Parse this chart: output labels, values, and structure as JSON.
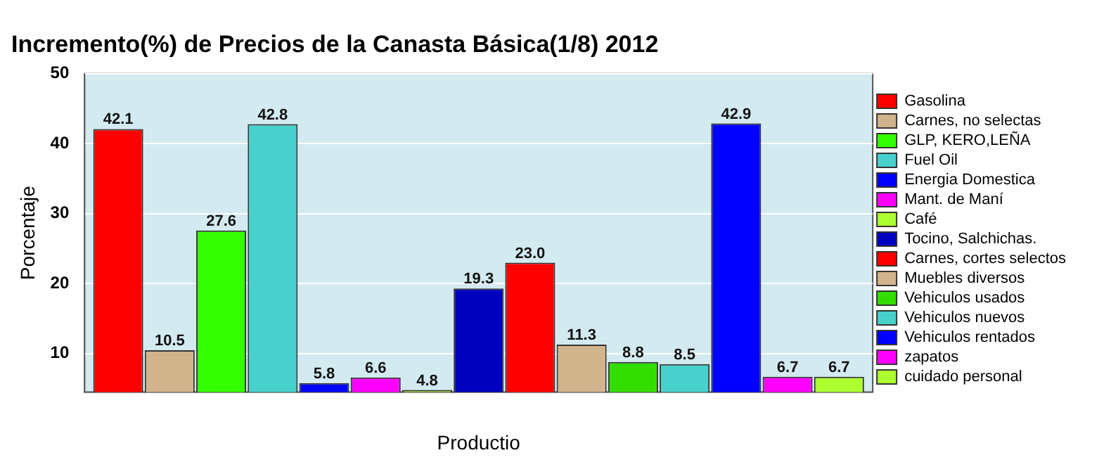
{
  "chart_data": {
    "type": "bar",
    "title": "Incremento(%) de Precios de la Canasta Básica(1/8) 2012",
    "xlabel": "Productio",
    "ylabel": "Porcentaje",
    "categories": [
      null
    ],
    "series": [
      {
        "name": "Gasolina",
        "color": "#ff0000",
        "values": [
          42.1
        ],
        "value_labels": [
          "42.1"
        ]
      },
      {
        "name": "Carnes, no selectas",
        "color": "#d2b48c",
        "values": [
          10.5
        ],
        "value_labels": [
          "10.5"
        ]
      },
      {
        "name": "GLP, KERO,LEÑA",
        "color": "#33ff00",
        "values": [
          27.6
        ],
        "value_labels": [
          "27.6"
        ]
      },
      {
        "name": "Fuel Oil",
        "color": "#48d1cc",
        "values": [
          42.8
        ],
        "value_labels": [
          "42.8"
        ]
      },
      {
        "name": "Energia Domestica",
        "color": "#0000ff",
        "values": [
          5.8
        ],
        "value_labels": [
          "5.8"
        ]
      },
      {
        "name": "Mant. de Maní",
        "color": "#ff00ff",
        "values": [
          6.6
        ],
        "value_labels": [
          "6.6"
        ]
      },
      {
        "name": "Café",
        "color": "#adff2f",
        "values": [
          4.8
        ],
        "value_labels": [
          "4.8"
        ]
      },
      {
        "name": "Tocino, Salchichas.",
        "color": "#0000c0",
        "values": [
          19.3
        ],
        "value_labels": [
          "19.3"
        ]
      },
      {
        "name": "Carnes, cortes selectos",
        "color": "#ff0000",
        "values": [
          23.0
        ],
        "value_labels": [
          "23.0"
        ]
      },
      {
        "name": "Muebles diversos",
        "color": "#d2b48c",
        "values": [
          11.3
        ],
        "value_labels": [
          "11.3"
        ]
      },
      {
        "name": "Vehiculos usados",
        "color": "#33dd00",
        "values": [
          8.8
        ],
        "value_labels": [
          "8.8"
        ]
      },
      {
        "name": "Vehiculos nuevos",
        "color": "#48d1cc",
        "values": [
          8.5
        ],
        "value_labels": [
          "8.5"
        ]
      },
      {
        "name": "Vehiculos rentados",
        "color": "#0000ff",
        "values": [
          42.9
        ],
        "value_labels": [
          "42.9"
        ]
      },
      {
        "name": "zapatos",
        "color": "#ff00ff",
        "values": [
          6.7
        ],
        "value_labels": [
          "6.7"
        ]
      },
      {
        "name": "cuidado personal",
        "color": "#adff2f",
        "values": [
          6.7
        ],
        "value_labels": [
          "6.7"
        ]
      }
    ],
    "ylim": [
      4.5,
      50
    ],
    "yticks": [
      10,
      20,
      30,
      40,
      50
    ],
    "grid": "y",
    "legend": "right"
  }
}
